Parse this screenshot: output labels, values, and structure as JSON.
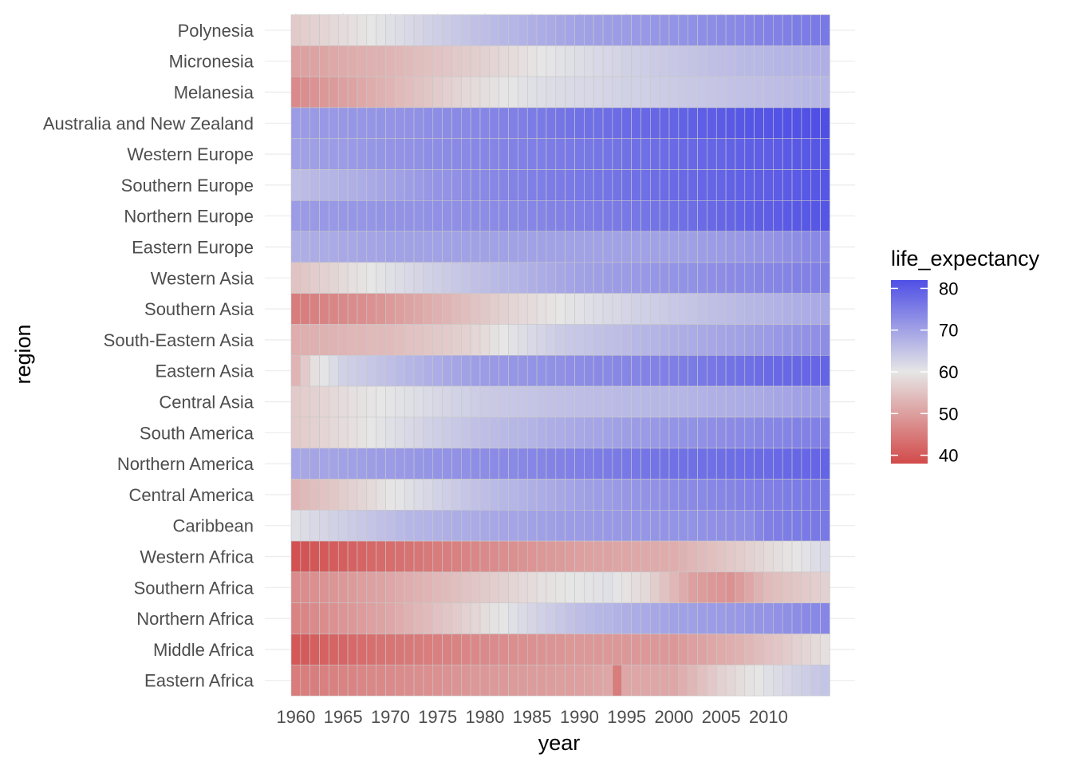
{
  "chart_data": {
    "type": "heatmap",
    "xlabel": "year",
    "ylabel": "region",
    "x_ticks": [
      "1960",
      "1965",
      "1970",
      "1975",
      "1980",
      "1985",
      "1990",
      "1995",
      "2000",
      "2005",
      "2010"
    ],
    "year_range": [
      1960,
      2016
    ],
    "legend": {
      "title": "life_expectancy",
      "ticks": [
        "40",
        "50",
        "60",
        "70",
        "80"
      ],
      "range": [
        38,
        82
      ],
      "colors": {
        "low": "#d24a4a",
        "mid": "#e6e6e6",
        "high": "#4f4fe6"
      },
      "midpoint": 60
    },
    "grid": true,
    "regions": [
      {
        "name": "Polynesia",
        "knots": [
          [
            1960,
            56
          ],
          [
            1970,
            61
          ],
          [
            1980,
            66
          ],
          [
            1990,
            70
          ],
          [
            2000,
            72
          ],
          [
            2008,
            74
          ],
          [
            2016,
            76
          ]
        ]
      },
      {
        "name": "Micronesia",
        "knots": [
          [
            1960,
            50
          ],
          [
            1970,
            53
          ],
          [
            1980,
            57
          ],
          [
            1986,
            60
          ],
          [
            1995,
            63
          ],
          [
            2005,
            66
          ],
          [
            2016,
            68
          ]
        ]
      },
      {
        "name": "Melanesia",
        "knots": [
          [
            1960,
            47
          ],
          [
            1970,
            53
          ],
          [
            1978,
            58
          ],
          [
            1985,
            61
          ],
          [
            1995,
            63
          ],
          [
            2005,
            65
          ],
          [
            2016,
            67
          ]
        ]
      },
      {
        "name": "Australia and New Zealand",
        "knots": [
          [
            1960,
            71
          ],
          [
            1970,
            72
          ],
          [
            1980,
            74
          ],
          [
            1990,
            77
          ],
          [
            2000,
            79
          ],
          [
            2008,
            81
          ],
          [
            2016,
            82
          ]
        ]
      },
      {
        "name": "Western Europe",
        "knots": [
          [
            1960,
            70
          ],
          [
            1970,
            72
          ],
          [
            1980,
            74
          ],
          [
            1990,
            76
          ],
          [
            2000,
            78
          ],
          [
            2010,
            80
          ],
          [
            2016,
            81
          ]
        ]
      },
      {
        "name": "Southern Europe",
        "knots": [
          [
            1960,
            66
          ],
          [
            1966,
            68
          ],
          [
            1975,
            72
          ],
          [
            1985,
            75
          ],
          [
            1995,
            77
          ],
          [
            2005,
            79
          ],
          [
            2016,
            81
          ]
        ]
      },
      {
        "name": "Northern Europe",
        "knots": [
          [
            1960,
            71
          ],
          [
            1970,
            72
          ],
          [
            1980,
            73
          ],
          [
            1990,
            75
          ],
          [
            2000,
            77
          ],
          [
            2010,
            80
          ],
          [
            2016,
            81
          ]
        ]
      },
      {
        "name": "Eastern Europe",
        "knots": [
          [
            1960,
            68
          ],
          [
            1970,
            70
          ],
          [
            1980,
            70
          ],
          [
            1990,
            70
          ],
          [
            2000,
            70
          ],
          [
            2010,
            72
          ],
          [
            2016,
            74
          ]
        ]
      },
      {
        "name": "Western Asia",
        "knots": [
          [
            1960,
            55
          ],
          [
            1966,
            59
          ],
          [
            1972,
            62
          ],
          [
            1980,
            66
          ],
          [
            1990,
            70
          ],
          [
            2000,
            72
          ],
          [
            2010,
            74
          ],
          [
            2016,
            75
          ]
        ]
      },
      {
        "name": "Southern Asia",
        "knots": [
          [
            1960,
            45
          ],
          [
            1968,
            48
          ],
          [
            1976,
            53
          ],
          [
            1982,
            57
          ],
          [
            1988,
            60
          ],
          [
            1996,
            63
          ],
          [
            2005,
            66
          ],
          [
            2016,
            69
          ]
        ]
      },
      {
        "name": "South-Eastern Asia",
        "knots": [
          [
            1960,
            52
          ],
          [
            1970,
            54
          ],
          [
            1978,
            57
          ],
          [
            1982,
            60
          ],
          [
            1988,
            64
          ],
          [
            2000,
            68
          ],
          [
            2010,
            71
          ],
          [
            2016,
            73
          ]
        ]
      },
      {
        "name": "Eastern Asia",
        "knots": [
          [
            1960,
            53
          ],
          [
            1962,
            59
          ],
          [
            1965,
            63
          ],
          [
            1972,
            67
          ],
          [
            1980,
            71
          ],
          [
            1990,
            73
          ],
          [
            2000,
            75
          ],
          [
            2010,
            78
          ],
          [
            2016,
            79
          ]
        ]
      },
      {
        "name": "Central Asia",
        "knots": [
          [
            1960,
            56
          ],
          [
            1966,
            59
          ],
          [
            1972,
            61
          ],
          [
            1980,
            64
          ],
          [
            1990,
            66
          ],
          [
            2000,
            67
          ],
          [
            2010,
            69
          ],
          [
            2016,
            71
          ]
        ]
      },
      {
        "name": "South America",
        "knots": [
          [
            1960,
            56
          ],
          [
            1966,
            59
          ],
          [
            1972,
            62
          ],
          [
            1980,
            66
          ],
          [
            1990,
            69
          ],
          [
            2000,
            72
          ],
          [
            2010,
            74
          ],
          [
            2016,
            75
          ]
        ]
      },
      {
        "name": "Northern America",
        "knots": [
          [
            1960,
            69
          ],
          [
            1970,
            71
          ],
          [
            1980,
            73
          ],
          [
            1990,
            75
          ],
          [
            2000,
            77
          ],
          [
            2010,
            78
          ],
          [
            2016,
            79
          ]
        ]
      },
      {
        "name": "Central America",
        "knots": [
          [
            1960,
            53
          ],
          [
            1966,
            57
          ],
          [
            1972,
            61
          ],
          [
            1980,
            66
          ],
          [
            1990,
            70
          ],
          [
            2000,
            73
          ],
          [
            2010,
            75
          ],
          [
            2016,
            76
          ]
        ]
      },
      {
        "name": "Caribbean",
        "knots": [
          [
            1960,
            61
          ],
          [
            1966,
            64
          ],
          [
            1972,
            67
          ],
          [
            1980,
            69
          ],
          [
            1990,
            71
          ],
          [
            2000,
            72
          ],
          [
            2008,
            73
          ],
          [
            2010,
            75
          ],
          [
            2016,
            76
          ]
        ]
      },
      {
        "name": "Western Africa",
        "knots": [
          [
            1960,
            39
          ],
          [
            1970,
            43
          ],
          [
            1980,
            47
          ],
          [
            1990,
            50
          ],
          [
            2000,
            52
          ],
          [
            2008,
            57
          ],
          [
            2016,
            62
          ]
        ]
      },
      {
        "name": "Southern Africa",
        "knots": [
          [
            1960,
            47
          ],
          [
            1970,
            51
          ],
          [
            1980,
            56
          ],
          [
            1986,
            59
          ],
          [
            1993,
            61
          ],
          [
            1997,
            58
          ],
          [
            2002,
            50
          ],
          [
            2006,
            48
          ],
          [
            2010,
            54
          ],
          [
            2016,
            57
          ]
        ]
      },
      {
        "name": "Northern Africa",
        "knots": [
          [
            1960,
            46
          ],
          [
            1970,
            51
          ],
          [
            1978,
            57
          ],
          [
            1983,
            61
          ],
          [
            1990,
            66
          ],
          [
            2000,
            70
          ],
          [
            2010,
            72
          ],
          [
            2016,
            74
          ]
        ]
      },
      {
        "name": "Middle Africa",
        "knots": [
          [
            1960,
            40
          ],
          [
            1970,
            44
          ],
          [
            1980,
            47
          ],
          [
            1990,
            49
          ],
          [
            2000,
            49
          ],
          [
            2006,
            52
          ],
          [
            2016,
            59
          ]
        ]
      },
      {
        "name": "Eastern Africa",
        "knots": [
          [
            1960,
            45
          ],
          [
            1970,
            47
          ],
          [
            1980,
            49
          ],
          [
            1990,
            50
          ],
          [
            1993,
            51
          ],
          [
            1994,
            45
          ],
          [
            1995,
            51
          ],
          [
            2000,
            51
          ],
          [
            2005,
            57
          ],
          [
            2010,
            61
          ],
          [
            2016,
            65
          ]
        ]
      }
    ]
  }
}
